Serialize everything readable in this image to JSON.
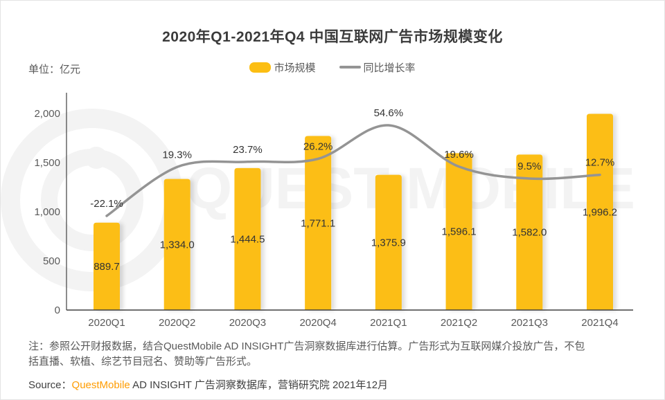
{
  "title": "2020年Q1-2021年Q4 中国互联网广告市场规模变化",
  "unit_label": "单位：亿元",
  "legend": {
    "bar_label": "市场规模",
    "line_label": "同比增长率"
  },
  "colors": {
    "bar": "#FCBE13",
    "line": "#949494",
    "axis": "#404040",
    "tick_text": "#595959",
    "data_label": "#333333",
    "watermark": "#f3f3f3",
    "source_brand": "#FF9C00"
  },
  "watermark_text": "QUEST MOBILE",
  "chart_data": {
    "type": "bar",
    "categories": [
      "2020Q1",
      "2020Q2",
      "2020Q3",
      "2020Q4",
      "2021Q1",
      "2021Q2",
      "2021Q3",
      "2021Q4"
    ],
    "series": [
      {
        "name": "市场规模",
        "type": "bar",
        "values": [
          889.7,
          1334.0,
          1444.5,
          1771.1,
          1375.9,
          1596.1,
          1582.0,
          1996.2
        ],
        "labels": [
          "889.7",
          "1,334.0",
          "1,444.5",
          "1,771.1",
          "1,375.9",
          "1,596.1",
          "1,582.0",
          "1,996.2"
        ]
      },
      {
        "name": "同比增长率",
        "type": "line",
        "values": [
          -22.1,
          19.3,
          23.7,
          26.2,
          54.6,
          19.6,
          9.5,
          12.7
        ],
        "labels": [
          "-22.1%",
          "19.3%",
          "23.7%",
          "26.2%",
          "54.6%",
          "19.6%",
          "9.5%",
          "12.7%"
        ]
      }
    ],
    "title": "2020年Q1-2021年Q4 中国互联网广告市场规模变化",
    "xlabel": "",
    "ylabel": "单位：亿元",
    "yaxis": {
      "ticks": [
        "0",
        "500",
        "1,000",
        "1,500",
        "2,000"
      ],
      "min": 0,
      "max": 2000
    },
    "grid": false,
    "legend_position": "top"
  },
  "note_line1": "注：参照公开财报数据，结合QuestMobile AD INSIGHT广告洞察数据库进行估算。广告形式为互联网媒介投放广告，不包",
  "note_line2": "括直播、软植、综艺节目冠名、赞助等广告形式。",
  "source": {
    "prefix": "Source：",
    "brand": "QuestMobile",
    "suffix": " AD INSIGHT 广告洞察数据库，营销研究院 2021年12月"
  }
}
